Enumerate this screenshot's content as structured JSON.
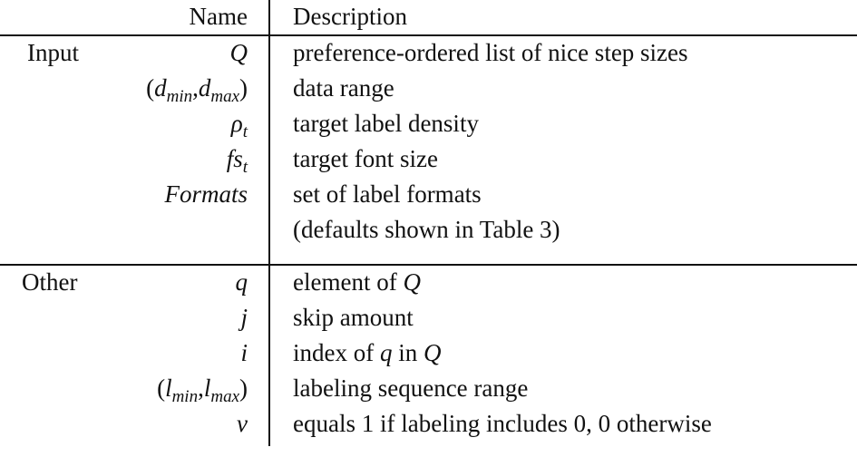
{
  "header": {
    "name": "Name",
    "description": "Description"
  },
  "sections": {
    "input": {
      "label": "Input",
      "rows": [
        {
          "symbol": "Q",
          "description": "preference-ordered list of nice step sizes"
        },
        {
          "symbol": {
            "open": "(",
            "a": "d",
            "a_sub": "min",
            "comma": ",",
            "b": "d",
            "b_sub": "max",
            "close": ")"
          },
          "description": "data range"
        },
        {
          "symbol": {
            "base": "ρ",
            "sub": "t"
          },
          "description": "target label density"
        },
        {
          "symbol": {
            "base": "fs",
            "sub": "t"
          },
          "description": "target font size"
        },
        {
          "symbol": "Formats",
          "description": "set of label formats"
        },
        {
          "symbol": "",
          "description": "(defaults shown in Table 3)"
        }
      ]
    },
    "other": {
      "label": "Other",
      "rows": [
        {
          "symbol": "q",
          "description": {
            "text": "element of ",
            "sym": "Q"
          }
        },
        {
          "symbol": "j",
          "description": "skip amount"
        },
        {
          "symbol": "i",
          "description": {
            "t1": "index of ",
            "s1": "q",
            "t2": " in ",
            "s2": "Q"
          }
        },
        {
          "symbol": {
            "open": "(",
            "a": "l",
            "a_sub": "min",
            "comma": ",",
            "b": "l",
            "b_sub": "max",
            "close": ")"
          },
          "description": "labeling sequence range"
        },
        {
          "symbol": "v",
          "description": "equals 1 if labeling includes 0, 0 otherwise"
        }
      ]
    }
  }
}
